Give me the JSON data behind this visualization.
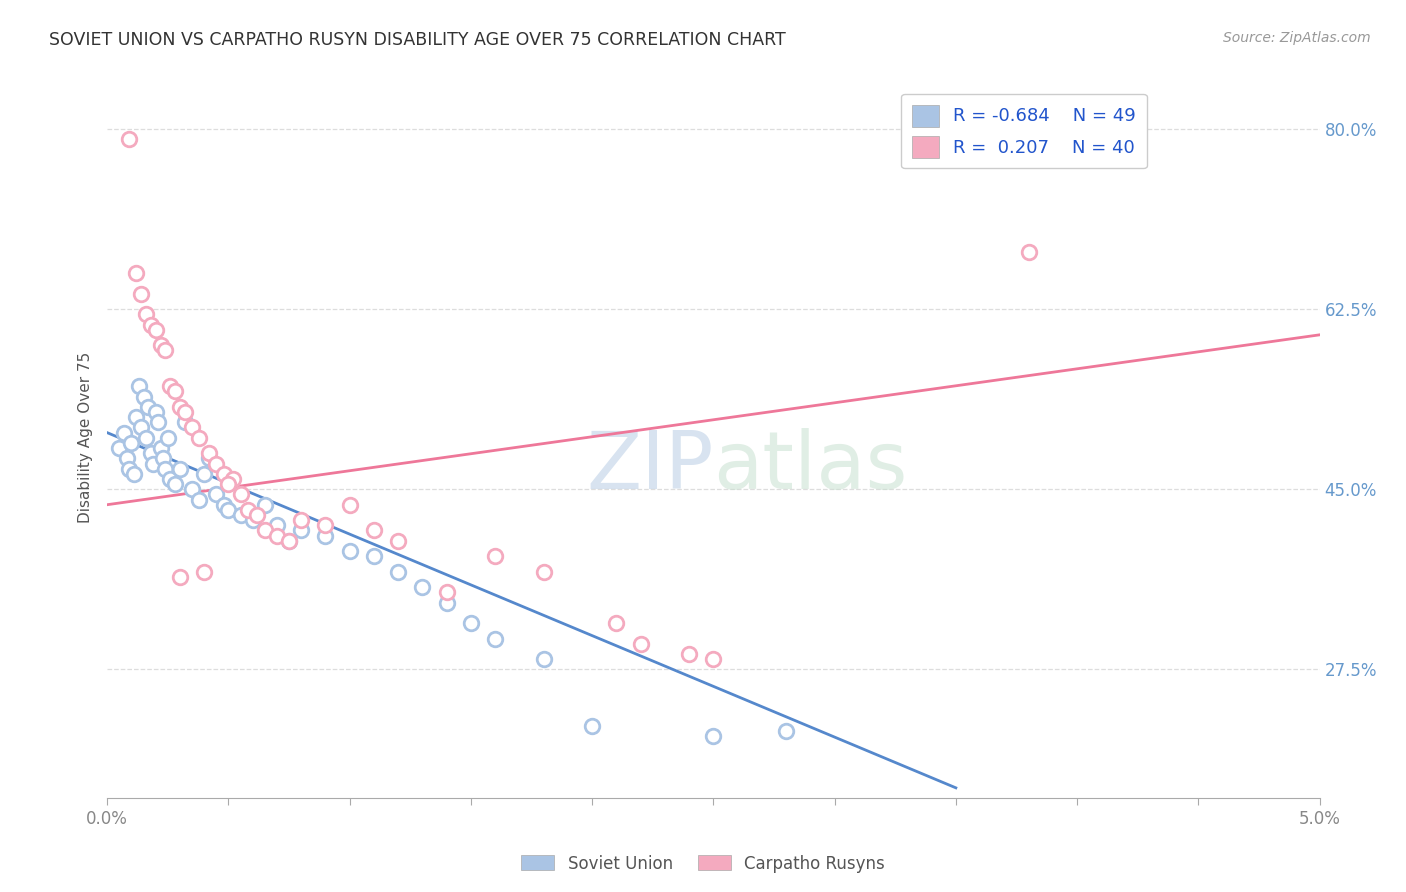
{
  "title": "SOVIET UNION VS CARPATHO RUSYN DISABILITY AGE OVER 75 CORRELATION CHART",
  "source": "Source: ZipAtlas.com",
  "ylabel": "Disability Age Over 75",
  "legend_label1": "Soviet Union",
  "legend_label2": "Carpatho Rusyns",
  "soviet_color": "#aac4e4",
  "carpatho_color": "#f4aabf",
  "soviet_line_color": "#5588cc",
  "carpatho_line_color": "#ee7799",
  "background_color": "#ffffff",
  "grid_color": "#dddddd",
  "xlim": [
    0.0,
    5.0
  ],
  "ylim": [
    15.0,
    85.0
  ],
  "yticks": [
    27.5,
    45.0,
    62.5,
    80.0
  ],
  "xtick_positions": [
    0.0,
    0.5,
    1.0,
    1.5,
    2.0,
    2.5,
    3.0,
    3.5,
    4.0,
    4.5,
    5.0
  ],
  "soviet_scatter_x": [
    0.05,
    0.07,
    0.08,
    0.09,
    0.1,
    0.11,
    0.12,
    0.13,
    0.14,
    0.15,
    0.16,
    0.17,
    0.18,
    0.19,
    0.2,
    0.21,
    0.22,
    0.23,
    0.24,
    0.25,
    0.26,
    0.28,
    0.3,
    0.32,
    0.35,
    0.38,
    0.4,
    0.42,
    0.45,
    0.48,
    0.5,
    0.55,
    0.6,
    0.65,
    0.7,
    0.75,
    0.8,
    0.9,
    1.0,
    1.1,
    1.2,
    1.3,
    1.4,
    1.5,
    1.6,
    1.8,
    2.0,
    2.5,
    2.8
  ],
  "soviet_scatter_y": [
    49.0,
    50.5,
    48.0,
    47.0,
    49.5,
    46.5,
    52.0,
    55.0,
    51.0,
    54.0,
    50.0,
    53.0,
    48.5,
    47.5,
    52.5,
    51.5,
    49.0,
    48.0,
    47.0,
    50.0,
    46.0,
    45.5,
    47.0,
    51.5,
    45.0,
    44.0,
    46.5,
    48.0,
    44.5,
    43.5,
    43.0,
    42.5,
    42.0,
    43.5,
    41.5,
    40.0,
    41.0,
    40.5,
    39.0,
    38.5,
    37.0,
    35.5,
    34.0,
    32.0,
    30.5,
    28.5,
    22.0,
    21.0,
    21.5
  ],
  "carpatho_scatter_x": [
    0.09,
    0.12,
    0.14,
    0.16,
    0.18,
    0.2,
    0.22,
    0.24,
    0.26,
    0.28,
    0.3,
    0.32,
    0.35,
    0.38,
    0.42,
    0.45,
    0.48,
    0.52,
    0.55,
    0.58,
    0.62,
    0.65,
    0.7,
    0.75,
    0.8,
    0.9,
    1.0,
    1.1,
    1.2,
    1.4,
    1.6,
    1.8,
    2.1,
    2.2,
    2.4,
    2.5,
    3.8,
    0.4,
    0.3,
    0.5
  ],
  "carpatho_scatter_y": [
    79.0,
    66.0,
    64.0,
    62.0,
    61.0,
    60.5,
    59.0,
    58.5,
    55.0,
    54.5,
    53.0,
    52.5,
    51.0,
    50.0,
    48.5,
    47.5,
    46.5,
    46.0,
    44.5,
    43.0,
    42.5,
    41.0,
    40.5,
    40.0,
    42.0,
    41.5,
    43.5,
    41.0,
    40.0,
    35.0,
    38.5,
    37.0,
    32.0,
    30.0,
    29.0,
    28.5,
    68.0,
    37.0,
    36.5,
    45.5
  ],
  "soviet_trend_x": [
    0.0,
    3.5
  ],
  "soviet_trend_y": [
    50.5,
    16.0
  ],
  "carpatho_trend_x": [
    0.0,
    5.0
  ],
  "carpatho_trend_y": [
    43.5,
    60.0
  ],
  "legend_r1": "R = -0.684",
  "legend_n1": "N = 49",
  "legend_r2": "R =  0.207",
  "legend_n2": "N = 40"
}
